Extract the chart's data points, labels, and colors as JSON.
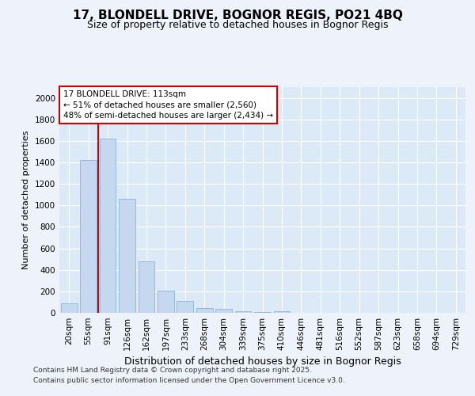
{
  "title1": "17, BLONDELL DRIVE, BOGNOR REGIS, PO21 4BQ",
  "title2": "Size of property relative to detached houses in Bognor Regis",
  "xlabel": "Distribution of detached houses by size in Bognor Regis",
  "ylabel": "Number of detached properties",
  "categories": [
    "20sqm",
    "55sqm",
    "91sqm",
    "126sqm",
    "162sqm",
    "197sqm",
    "233sqm",
    "268sqm",
    "304sqm",
    "339sqm",
    "375sqm",
    "410sqm",
    "446sqm",
    "481sqm",
    "516sqm",
    "552sqm",
    "587sqm",
    "623sqm",
    "658sqm",
    "694sqm",
    "729sqm"
  ],
  "values": [
    85,
    1420,
    1620,
    1060,
    480,
    205,
    110,
    45,
    35,
    15,
    10,
    15,
    0,
    0,
    0,
    0,
    0,
    0,
    0,
    0,
    0
  ],
  "bar_color": "#c5d8ef",
  "bar_edge_color": "#8ab4d8",
  "vline_color": "#cc0000",
  "annotation_text": "17 BLONDELL DRIVE: 113sqm\n← 51% of detached houses are smaller (2,560)\n48% of semi-detached houses are larger (2,434) →",
  "annotation_box_color": "#ffffff",
  "annotation_box_edge": "#cc0000",
  "ylim": [
    0,
    2100
  ],
  "yticks": [
    0,
    200,
    400,
    600,
    800,
    1000,
    1200,
    1400,
    1600,
    1800,
    2000
  ],
  "footer1": "Contains HM Land Registry data © Crown copyright and database right 2025.",
  "footer2": "Contains public sector information licensed under the Open Government Licence v3.0.",
  "bg_color": "#eef2fa",
  "plot_bg_color": "#dce9f7",
  "grid_color": "#ffffff",
  "title1_fontsize": 11,
  "title2_fontsize": 9,
  "ylabel_fontsize": 8,
  "xlabel_fontsize": 9,
  "tick_fontsize": 7.5,
  "footer_fontsize": 6.5
}
